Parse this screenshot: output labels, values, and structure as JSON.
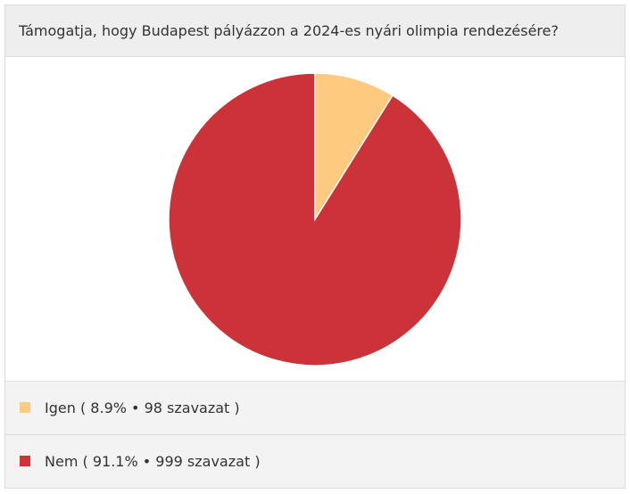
{
  "chart_data": {
    "type": "pie",
    "title": "Támogatja, hogy Budapest pályázzon a 2024-es nyári olimpia rendezésére?",
    "categories": [
      "Igen",
      "Nem"
    ],
    "values": [
      8.9,
      91.1
    ],
    "value_labels": [
      "8.9%",
      "91.1%"
    ],
    "colors": [
      "#fdca7f",
      "#cc3339"
    ],
    "votes": [
      98,
      999
    ],
    "vote_labels": [
      "98 szavazat",
      "999 szavazat"
    ],
    "open": "(",
    "separator": "•",
    "close": ")"
  }
}
